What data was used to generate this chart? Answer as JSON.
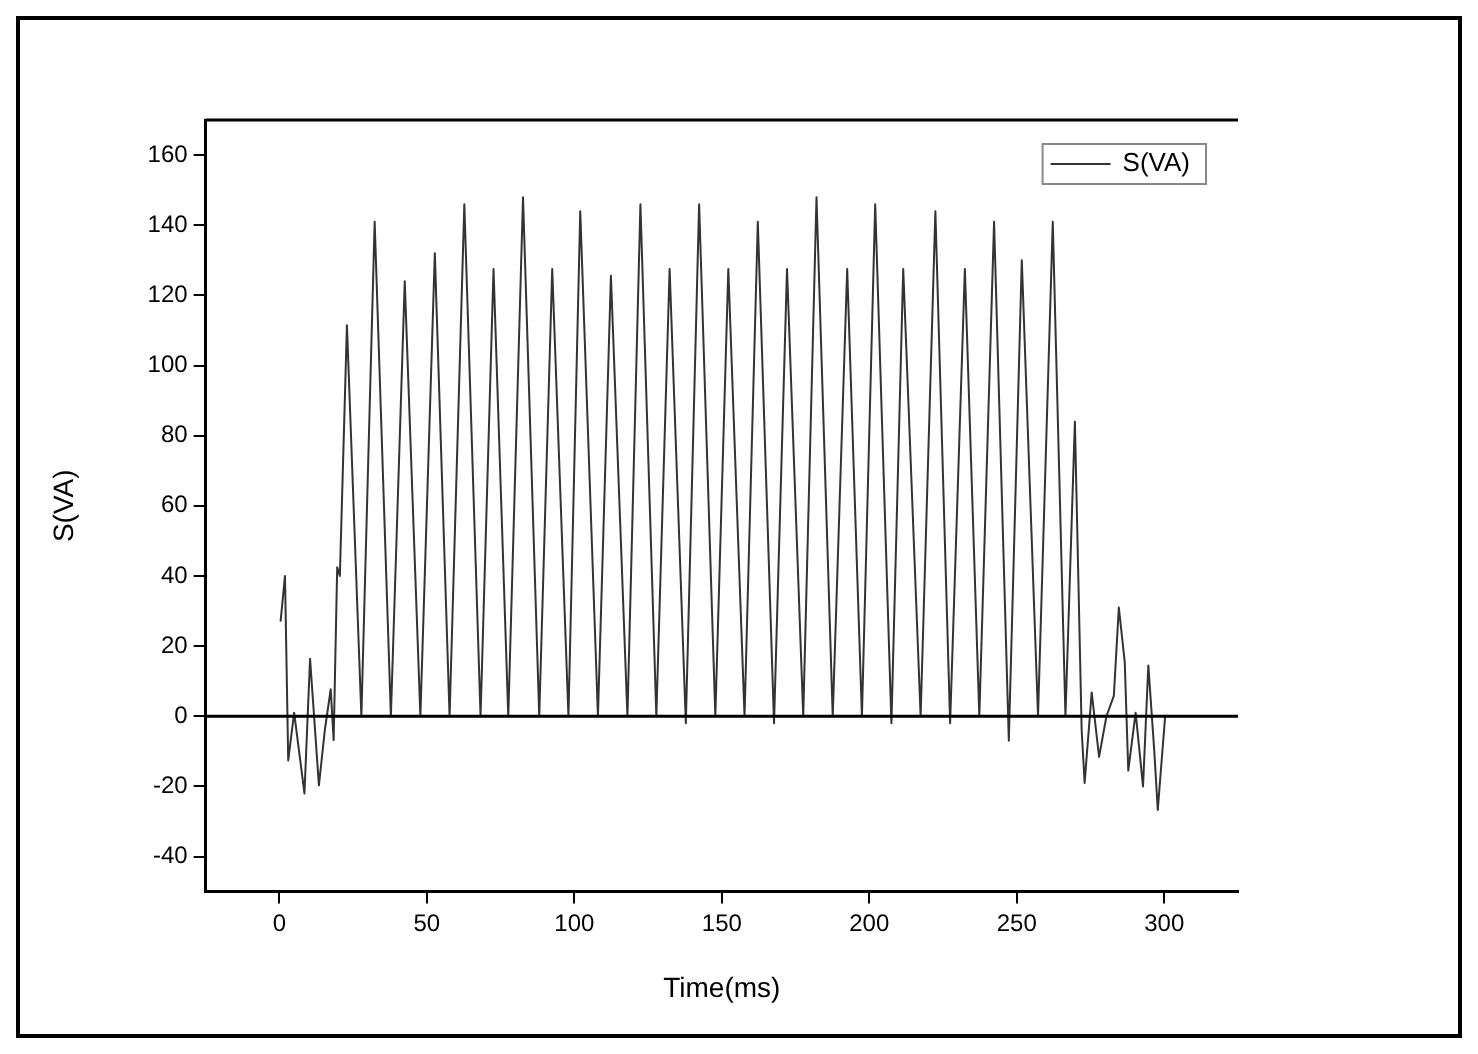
{
  "chart_data": {
    "type": "line",
    "xlabel": "Time(ms)",
    "ylabel": "S(VA)",
    "xlim": [
      -25,
      325
    ],
    "xticks": [
      0,
      50,
      100,
      150,
      200,
      250,
      300
    ],
    "ylim": [
      -50,
      170
    ],
    "yticks": [
      -40,
      -20,
      0,
      20,
      40,
      60,
      80,
      100,
      120,
      140,
      160
    ],
    "grid": false,
    "legend": "top right",
    "marker": "none",
    "line_style": "solid",
    "ref_lines": [
      {
        "axis": "y",
        "value": 0,
        "color": "#000000"
      }
    ],
    "series": [
      {
        "name": "S(VA)",
        "color": "#333333",
        "x": [
          0.4,
          1.9,
          3,
          5,
          8.5,
          10.4,
          13.4,
          15.4,
          17.4,
          18.4,
          19.6,
          20.5,
          22.9,
          27.8,
          32.3,
          37.8,
          42.5,
          47.8,
          52.7,
          57.7,
          62.7,
          68.2,
          72.6,
          77.6,
          82.6,
          88.1,
          92.5,
          98,
          102,
          108,
          112.4,
          118,
          122.4,
          127.8,
          132.3,
          137.8,
          142.3,
          147.8,
          152.2,
          157.7,
          162.2,
          167.7,
          172.1,
          177.6,
          182.1,
          187.6,
          192.5,
          197.5,
          202,
          207.5,
          211.5,
          217.4,
          222.4,
          227.4,
          232.4,
          237.3,
          242.3,
          247.3,
          251.7,
          257.2,
          262.2,
          266.5,
          269.7,
          272,
          273,
          275.4,
          277.9,
          280.4,
          282.9,
          284.6,
          286.6,
          287.8,
          290.3,
          292.8,
          294.6,
          296.6,
          297.8,
          300.3
        ],
        "values": [
          27,
          40,
          -12.6,
          1,
          -22,
          16.4,
          -19.7,
          -4,
          7.7,
          -6.8,
          42.5,
          40,
          111.5,
          0,
          141,
          0,
          124,
          0,
          132,
          0,
          146,
          0,
          127.5,
          0,
          148,
          0,
          127.5,
          0,
          144,
          0,
          125.6,
          0,
          146,
          0,
          127.5,
          -2,
          146,
          0,
          127.5,
          0,
          141,
          -2,
          127.5,
          0,
          148,
          0,
          127.5,
          0,
          146,
          -2,
          127.5,
          0,
          144,
          -2,
          127.5,
          0,
          141,
          -7,
          130,
          0,
          141,
          0,
          84,
          -4,
          -19,
          6.8,
          -11.6,
          0,
          5.8,
          31,
          15.5,
          -15.5,
          1,
          -20,
          14.5,
          -9.7,
          -26.7,
          0
        ]
      }
    ]
  }
}
